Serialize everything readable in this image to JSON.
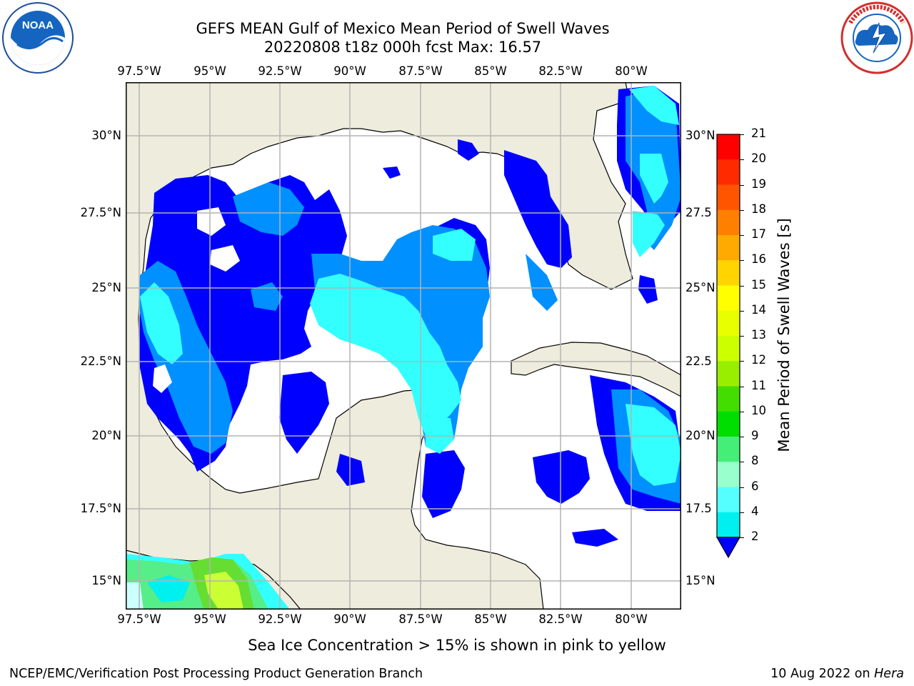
{
  "header": {
    "title_line1": "GEFS MEAN Gulf of Mexico Mean Period of Swell Waves",
    "title_line2": "20220808 t18z 000h fcst   Max: 16.57"
  },
  "logos": {
    "noaa_text": "NOAA",
    "noaa_ring_text": "NATIONAL OCEANIC AND ATMOSPHERIC ADMINISTRATION · U.S. DEPARTMENT OF COMMERCE",
    "nws_ring_text": "NATIONAL WEATHER SERVICE"
  },
  "map": {
    "lon_labels": [
      "97.5°W",
      "95°W",
      "92.5°W",
      "90°W",
      "87.5°W",
      "85°W",
      "82.5°W",
      "80°W"
    ],
    "lat_labels_left": [
      "30°N",
      "27.5°N",
      "25°N",
      "22.5°N",
      "20°N",
      "17.5°N",
      "15°N"
    ],
    "lat_labels_right": [
      "30°N",
      "27.5",
      "25°N",
      "22.5",
      "20°N",
      "17.5",
      "15°N"
    ],
    "colors": {
      "land": "#eeecdc",
      "ocean": "#ffffff",
      "grid": "#b0b0b0",
      "coast": "#000000"
    }
  },
  "colorbar": {
    "label": "Mean Period of Swell Waves [s]",
    "ticks": [
      "21",
      "20",
      "19",
      "18",
      "17",
      "16",
      "15",
      "14",
      "13",
      "12",
      "11",
      "10",
      "9",
      "8",
      "6",
      "4",
      "2"
    ],
    "colors": [
      "#ff0000",
      "#ff2a00",
      "#ff5500",
      "#ff8000",
      "#ffaa00",
      "#ffd400",
      "#ffff00",
      "#e8ff00",
      "#ccff00",
      "#99ee00",
      "#44dd00",
      "#00dd00",
      "#44ee77",
      "#99ffcc",
      "#55ffff",
      "#00f0f0",
      "#0088ff",
      "#0000ff"
    ]
  },
  "notes": {
    "sea_ice": "Sea Ice Concentration > 15% is shown in pink to yellow"
  },
  "footer": {
    "left": "NCEP/EMC/Verification Post Processing Product Generation Branch",
    "right_date": "10 Aug 2022 on ",
    "right_host": "Hera"
  }
}
